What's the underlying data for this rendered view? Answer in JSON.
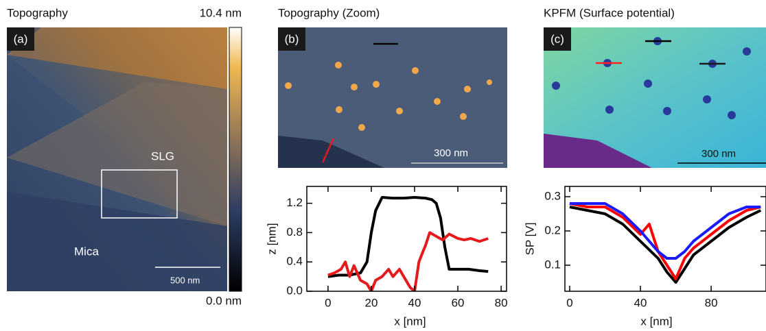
{
  "figure": {
    "panel_a": {
      "title": "Topography",
      "label": "(a)",
      "scale_max": "10.4 nm",
      "scale_min": "0.0 nm",
      "region_top": "SLG",
      "region_bottom": "Mica",
      "scale_bar": "500 nm"
    },
    "panel_b": {
      "title": "Topography (Zoom)",
      "label": "(b)",
      "scale_bar": "300 nm"
    },
    "panel_c": {
      "title": "KPFM (Surface potential)",
      "label": "(c)",
      "scale_bar": "300 nm"
    }
  },
  "chart_data": [
    {
      "type": "line",
      "y_label": "z [nm]",
      "x_label": "x [nm]",
      "xlim": [
        -9.8,
        82.5
      ],
      "ylim": [
        0,
        1.43
      ],
      "xticks": [
        0,
        20,
        40,
        60,
        80
      ],
      "yticks": [
        {
          "value": 0,
          "label": "0.0"
        },
        0.4,
        0.8,
        1.2
      ],
      "series": [
        {
          "color": "#000000",
          "x": [
            0,
            5,
            10,
            15,
            18,
            20,
            22,
            25,
            30,
            35,
            40,
            45,
            48,
            50,
            52,
            54,
            56,
            60,
            65,
            70,
            74
          ],
          "values": [
            0.2,
            0.22,
            0.22,
            0.25,
            0.4,
            0.8,
            1.1,
            1.28,
            1.27,
            1.27,
            1.28,
            1.27,
            1.25,
            1.2,
            1.0,
            0.6,
            0.3,
            0.3,
            0.3,
            0.28,
            0.27
          ]
        },
        {
          "color": "#e41a1c",
          "x": [
            0,
            3,
            6,
            8,
            10,
            12,
            15,
            18,
            20,
            22,
            25,
            28,
            30,
            33,
            36,
            38,
            40,
            42,
            44,
            45,
            47,
            50,
            53,
            56,
            60,
            63,
            66,
            70,
            74
          ],
          "values": [
            0.22,
            0.25,
            0.3,
            0.4,
            0.2,
            0.35,
            0.15,
            0.1,
            0.0,
            0.15,
            0.2,
            0.3,
            0.2,
            0.3,
            0.15,
            0.05,
            0.0,
            0.4,
            0.55,
            0.62,
            0.8,
            0.75,
            0.7,
            0.78,
            0.72,
            0.7,
            0.72,
            0.68,
            0.72
          ]
        }
      ]
    },
    {
      "type": "line",
      "y_label": "SP [V]",
      "x_label": "x [nm]",
      "xlim": [
        -2.7,
        111
      ],
      "ylim": [
        0.024,
        0.33
      ],
      "xticks": [
        0,
        40,
        80
      ],
      "yticks": [
        0.1,
        0.2,
        0.3
      ],
      "series": [
        {
          "color": "#000000",
          "x": [
            0,
            10,
            20,
            30,
            40,
            50,
            55,
            60,
            65,
            70,
            80,
            90,
            100,
            108
          ],
          "values": [
            0.27,
            0.26,
            0.25,
            0.22,
            0.17,
            0.12,
            0.08,
            0.05,
            0.09,
            0.13,
            0.17,
            0.21,
            0.24,
            0.26
          ]
        },
        {
          "color": "#ff0000",
          "x": [
            0,
            10,
            20,
            30,
            40,
            45,
            50,
            55,
            60,
            65,
            70,
            80,
            90,
            100,
            108
          ],
          "values": [
            0.28,
            0.27,
            0.27,
            0.24,
            0.19,
            0.22,
            0.14,
            0.1,
            0.06,
            0.12,
            0.15,
            0.19,
            0.23,
            0.26,
            0.27
          ]
        },
        {
          "color": "#1a1aff",
          "x": [
            0,
            10,
            20,
            30,
            40,
            50,
            55,
            60,
            65,
            70,
            80,
            90,
            100,
            108
          ],
          "values": [
            0.28,
            0.28,
            0.28,
            0.25,
            0.2,
            0.14,
            0.12,
            0.12,
            0.14,
            0.17,
            0.21,
            0.25,
            0.27,
            0.27
          ]
        }
      ]
    }
  ]
}
